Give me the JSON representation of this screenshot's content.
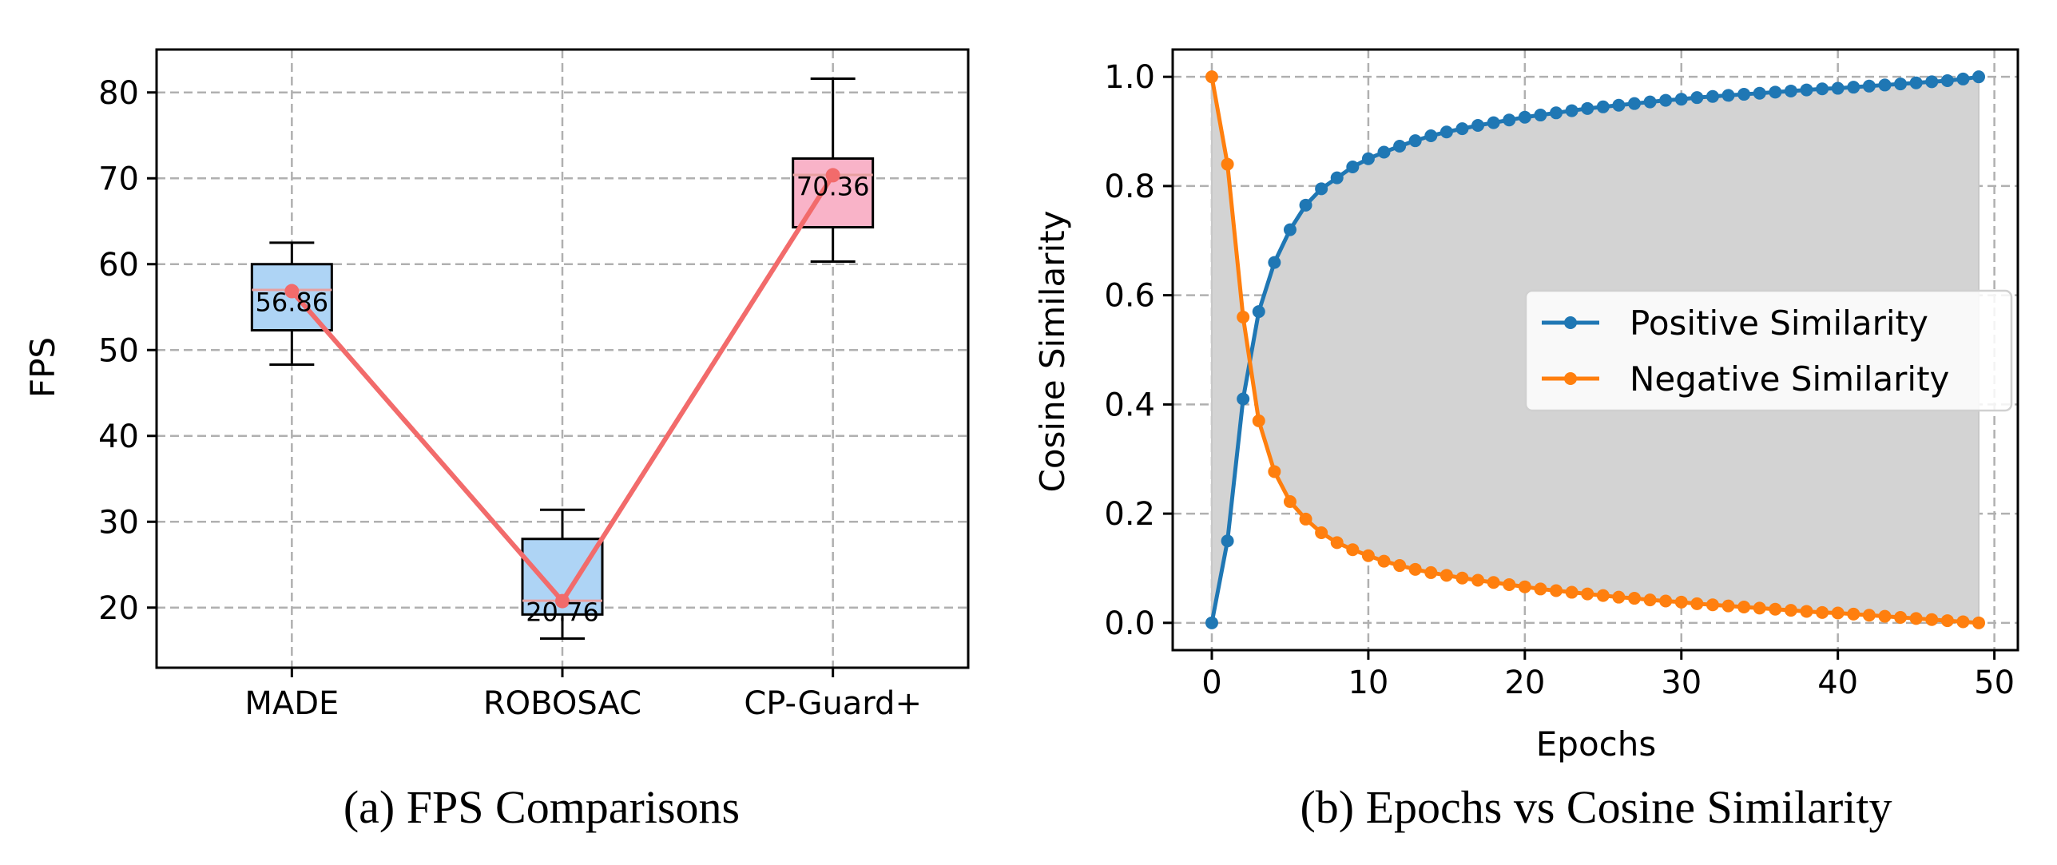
{
  "chart_data": [
    {
      "type": "box",
      "caption": "(a) FPS Comparisons",
      "ylabel": "FPS",
      "xlabel": "",
      "ylim": [
        13,
        85
      ],
      "yticks": [
        20,
        30,
        40,
        50,
        60,
        70,
        80
      ],
      "categories": [
        "MADE",
        "ROBOSAC",
        "CP-Guard+"
      ],
      "grid": true,
      "boxes": [
        {
          "category": "MADE",
          "whisker_low": 48.3,
          "q1": 52.3,
          "median": 57.0,
          "q3": 60.0,
          "whisker_high": 62.5,
          "mean": 56.86,
          "mean_label": "56.86",
          "color": "#aed4f5"
        },
        {
          "category": "ROBOSAC",
          "whisker_low": 16.4,
          "q1": 19.2,
          "median": 20.8,
          "q3": 28.0,
          "whisker_high": 31.4,
          "mean": 20.76,
          "mean_label": "20.76",
          "color": "#aed4f5"
        },
        {
          "category": "CP-Guard+",
          "whisker_low": 60.3,
          "q1": 64.3,
          "median": 70.4,
          "q3": 72.3,
          "whisker_high": 81.6,
          "mean": 70.36,
          "mean_label": "70.36",
          "color": "#f9b3c8"
        }
      ],
      "mean_line_color": "#f26b6b"
    },
    {
      "type": "line",
      "caption": "(b) Epochs vs Cosine Similarity",
      "xlabel": "Epochs",
      "ylabel": "Cosine Similarity",
      "xlim": [
        -2.5,
        51.5
      ],
      "ylim": [
        -0.05,
        1.05
      ],
      "xticks": [
        0,
        10,
        20,
        30,
        40,
        50
      ],
      "yticks": [
        "0.0",
        "0.2",
        "0.4",
        "0.6",
        "0.8",
        "1.0"
      ],
      "grid": true,
      "fill_between_series": true,
      "fill_color": "#d3d3d3",
      "legend_position": "center-right",
      "x": [
        0,
        1,
        2,
        3,
        4,
        5,
        6,
        7,
        8,
        9,
        10,
        11,
        12,
        13,
        14,
        15,
        16,
        17,
        18,
        19,
        20,
        21,
        22,
        23,
        24,
        25,
        26,
        27,
        28,
        29,
        30,
        31,
        32,
        33,
        34,
        35,
        36,
        37,
        38,
        39,
        40,
        41,
        42,
        43,
        44,
        45,
        46,
        47,
        48,
        49
      ],
      "series": [
        {
          "name": "Positive Similarity",
          "color": "#1f77b4",
          "values": [
            0.0,
            0.15,
            0.41,
            0.57,
            0.66,
            0.72,
            0.765,
            0.795,
            0.815,
            0.835,
            0.85,
            0.862,
            0.873,
            0.883,
            0.892,
            0.899,
            0.905,
            0.911,
            0.916,
            0.921,
            0.926,
            0.93,
            0.934,
            0.938,
            0.942,
            0.945,
            0.948,
            0.951,
            0.954,
            0.957,
            0.959,
            0.962,
            0.964,
            0.966,
            0.968,
            0.97,
            0.972,
            0.974,
            0.976,
            0.978,
            0.979,
            0.981,
            0.983,
            0.985,
            0.987,
            0.989,
            0.991,
            0.993,
            0.996,
            1.0
          ]
        },
        {
          "name": "Negative Similarity",
          "color": "#ff7f0e",
          "values": [
            1.0,
            0.84,
            0.56,
            0.37,
            0.277,
            0.222,
            0.19,
            0.165,
            0.147,
            0.134,
            0.123,
            0.113,
            0.105,
            0.098,
            0.092,
            0.087,
            0.082,
            0.078,
            0.074,
            0.07,
            0.066,
            0.062,
            0.059,
            0.056,
            0.053,
            0.05,
            0.047,
            0.045,
            0.042,
            0.04,
            0.038,
            0.035,
            0.033,
            0.031,
            0.029,
            0.027,
            0.025,
            0.023,
            0.021,
            0.019,
            0.018,
            0.016,
            0.014,
            0.012,
            0.01,
            0.008,
            0.006,
            0.004,
            0.002,
            0.0
          ]
        }
      ]
    }
  ]
}
